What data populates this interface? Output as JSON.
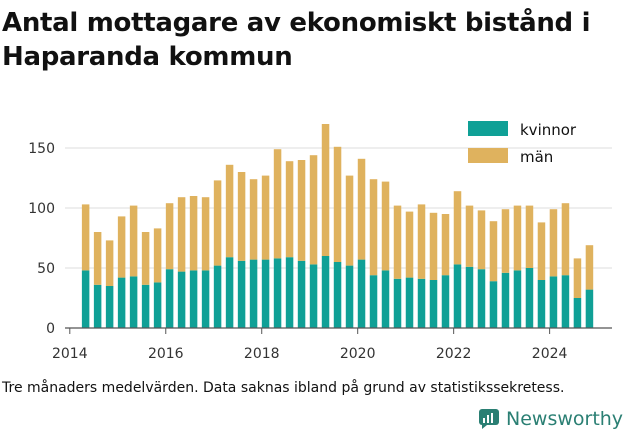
{
  "title": "Antal mottagare av ekonomiskt bistånd i Haparanda kommun",
  "caption": "Tre månaders medelvärden. Data saknas ibland på grund av statistikssekretess.",
  "brand": {
    "name": "Newsworthy"
  },
  "colors": {
    "kvinnor": "#0fa096",
    "man": "#dfb25e",
    "grid": "#dddddd",
    "axis": "#555555",
    "brand": "#2a7f73"
  },
  "chart_data": {
    "type": "bar",
    "stacked": true,
    "title": "Antal mottagare av ekonomiskt bistånd i Haparanda kommun",
    "ylim": [
      0,
      175
    ],
    "yticks": [
      0,
      50,
      100,
      150
    ],
    "xticks": [
      "2014",
      "2016",
      "2018",
      "2020",
      "2022",
      "2024"
    ],
    "xlim": [
      2013.9,
      2025.3
    ],
    "grid": true,
    "legend_position": "top-right",
    "x": [
      2014.33,
      2014.58,
      2014.83,
      2015.08,
      2015.33,
      2015.58,
      2015.83,
      2016.08,
      2016.33,
      2016.58,
      2016.83,
      2017.08,
      2017.33,
      2017.58,
      2017.83,
      2018.08,
      2018.33,
      2018.58,
      2018.83,
      2019.08,
      2019.33,
      2019.58,
      2019.83,
      2020.08,
      2020.33,
      2020.58,
      2020.83,
      2021.08,
      2021.33,
      2021.58,
      2021.83,
      2022.08,
      2022.33,
      2022.58,
      2022.83,
      2023.08,
      2023.33,
      2023.58,
      2023.83,
      2024.08,
      2024.33,
      2024.58,
      2024.83
    ],
    "series": [
      {
        "name": "kvinnor",
        "values": [
          48,
          36,
          35,
          42,
          43,
          36,
          38,
          49,
          47,
          48,
          48,
          52,
          59,
          56,
          57,
          57,
          58,
          59,
          56,
          53,
          60,
          55,
          52,
          57,
          44,
          48,
          41,
          42,
          41,
          40,
          44,
          53,
          51,
          49,
          39,
          46,
          48,
          50,
          40,
          43,
          44,
          25,
          32
        ]
      },
      {
        "name": "män",
        "values": [
          55,
          44,
          38,
          51,
          59,
          44,
          45,
          55,
          62,
          62,
          61,
          71,
          77,
          74,
          67,
          70,
          91,
          80,
          84,
          91,
          110,
          96,
          75,
          84,
          80,
          74,
          61,
          55,
          62,
          56,
          51,
          61,
          51,
          49,
          50,
          53,
          54,
          52,
          48,
          56,
          60,
          33,
          37
        ]
      }
    ]
  }
}
